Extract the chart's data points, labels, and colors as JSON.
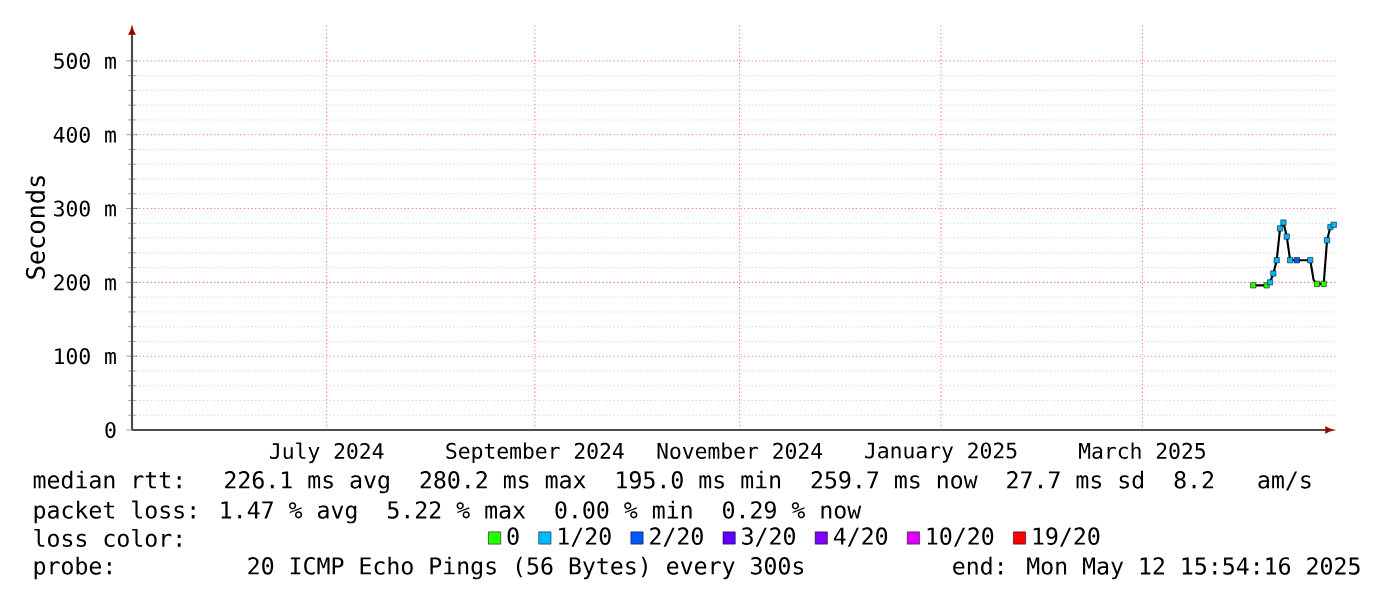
{
  "chart_data": {
    "type": "line",
    "ylabel": "Seconds",
    "xlim": [
      "2024-05-19",
      "2025-05-12T15:54"
    ],
    "xticks": [
      {
        "value": "2024-07-16",
        "label": "July 2024"
      },
      {
        "value": "2024-09-16",
        "label": "September 2024"
      },
      {
        "value": "2024-11-16",
        "label": "November 2024"
      },
      {
        "value": "2025-01-15",
        "label": "January 2025"
      },
      {
        "value": "2025-03-16",
        "label": "March 2025"
      }
    ],
    "ylim": [
      0,
      550
    ],
    "yticks": [
      0,
      {
        "value": 100,
        "label": "100 m"
      },
      {
        "value": 200,
        "label": "200 m"
      },
      {
        "value": 300,
        "label": "300 m"
      },
      {
        "value": 400,
        "label": "400 m"
      },
      {
        "value": 500,
        "label": "500 m"
      }
    ],
    "grid": true,
    "legend": "bottom",
    "legend_title": "loss color:",
    "series": [
      {
        "color": "#000000",
        "marker": "none",
        "x": [
          "2025-04-18",
          "2025-04-22",
          "2025-04-23",
          "2025-04-24",
          "2025-04-25",
          "2025-04-26",
          "2025-04-27",
          "2025-04-28",
          "2025-04-29",
          "2025-05-01",
          "2025-05-05",
          "2025-05-06",
          "2025-05-07",
          "2025-05-09",
          "2025-05-10",
          "2025-05-11",
          "2025-05-12"
        ],
        "values": [
          196,
          196,
          200,
          212,
          230,
          273,
          281,
          262,
          230,
          230,
          230,
          203,
          198,
          198,
          257,
          275,
          278
        ]
      },
      {
        "type": "scatter",
        "name": "0",
        "color": "#26ff00",
        "marker": "square",
        "x": [
          "2025-04-18",
          "2025-04-22",
          "2025-05-07",
          "2025-05-09"
        ],
        "values": [
          196,
          196,
          198,
          198
        ]
      },
      {
        "type": "scatter",
        "name": "1/20",
        "color": "#00b8ff",
        "marker": "square",
        "x": [
          "2025-04-23",
          "2025-04-24",
          "2025-04-25",
          "2025-04-26",
          "2025-04-27",
          "2025-04-28",
          "2025-04-29",
          "2025-05-05",
          "2025-05-10",
          "2025-05-11",
          "2025-05-12"
        ],
        "values": [
          200,
          212,
          230,
          273,
          281,
          262,
          230,
          230,
          257,
          275,
          278
        ]
      },
      {
        "type": "scatter",
        "name": "2/20",
        "color": "#0059ff",
        "marker": "square",
        "x": [
          "2025-05-01"
        ],
        "values": [
          230
        ]
      },
      {
        "type": "scatter",
        "name": "3/20",
        "color": "#5e00ff",
        "marker": "square"
      },
      {
        "type": "scatter",
        "name": "4/20",
        "color": "#7e00ff",
        "marker": "square"
      },
      {
        "type": "scatter",
        "name": "10/20",
        "color": "#dd00ff",
        "marker": "square"
      },
      {
        "type": "scatter",
        "name": "19/20",
        "color": "#ff0000",
        "marker": "square"
      }
    ],
    "annotations": [
      "median rtt:  226.1 ms avg  280.2 ms max  195.0 ms min  259.7 ms now  27.7 ms sd  8.2   am/s",
      "packet loss: 1.47 % avg  5.22 % max  0.00 % min  0.29 % now",
      "probe:       20 ICMP Echo Pings (56 Bytes) every 300s",
      "end: Mon May 12 15:54:16 2025"
    ]
  }
}
